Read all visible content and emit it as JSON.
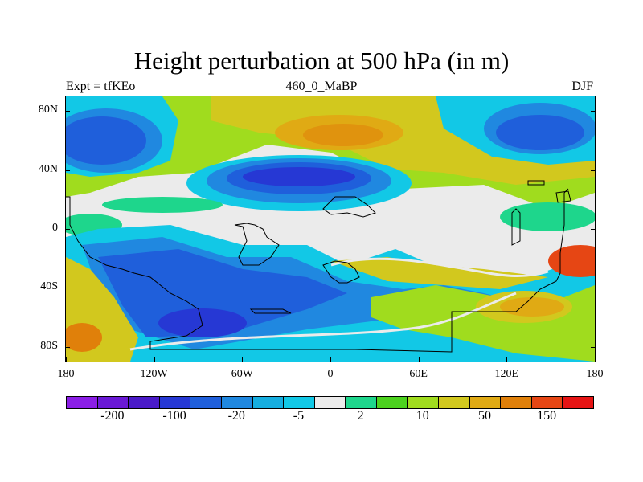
{
  "title": "Height perturbation at 500 hPa (in m)",
  "subtitle_left": "Expt = tfKEo",
  "subtitle_center": "460_0_MaBP",
  "subtitle_right": "DJF",
  "y_axis_labels": [
    {
      "text": "80N",
      "lat": 80
    },
    {
      "text": "40N",
      "lat": 40
    },
    {
      "text": "0",
      "lat": 0
    },
    {
      "text": "40S",
      "lat": -40
    },
    {
      "text": "80S",
      "lat": -80
    }
  ],
  "x_axis_labels": [
    {
      "text": "180",
      "lon": -180
    },
    {
      "text": "120W",
      "lon": -120
    },
    {
      "text": "60W",
      "lon": -60
    },
    {
      "text": "0",
      "lon": 0
    },
    {
      "text": "60E",
      "lon": 60
    },
    {
      "text": "120E",
      "lon": 120
    },
    {
      "text": "180",
      "lon": 180
    }
  ],
  "colorbar": {
    "colors": [
      "#8b1ee6",
      "#6a19d6",
      "#4a1ac8",
      "#2638d4",
      "#1f5fdb",
      "#2088e0",
      "#16aee0",
      "#12c8e6",
      "#ebebeb",
      "#1ed68c",
      "#4cd21e",
      "#a0dc1e",
      "#d2c81e",
      "#e0aa14",
      "#e0800a",
      "#e64614",
      "#e61414"
    ],
    "labels": [
      {
        "text": "-200",
        "index": 1
      },
      {
        "text": "-100",
        "index": 3
      },
      {
        "text": "-20",
        "index": 5
      },
      {
        "text": "-5",
        "index": 7
      },
      {
        "text": "2",
        "index": 9
      },
      {
        "text": "10",
        "index": 11
      },
      {
        "text": "50",
        "index": 13
      },
      {
        "text": "150",
        "index": 15
      }
    ]
  }
}
